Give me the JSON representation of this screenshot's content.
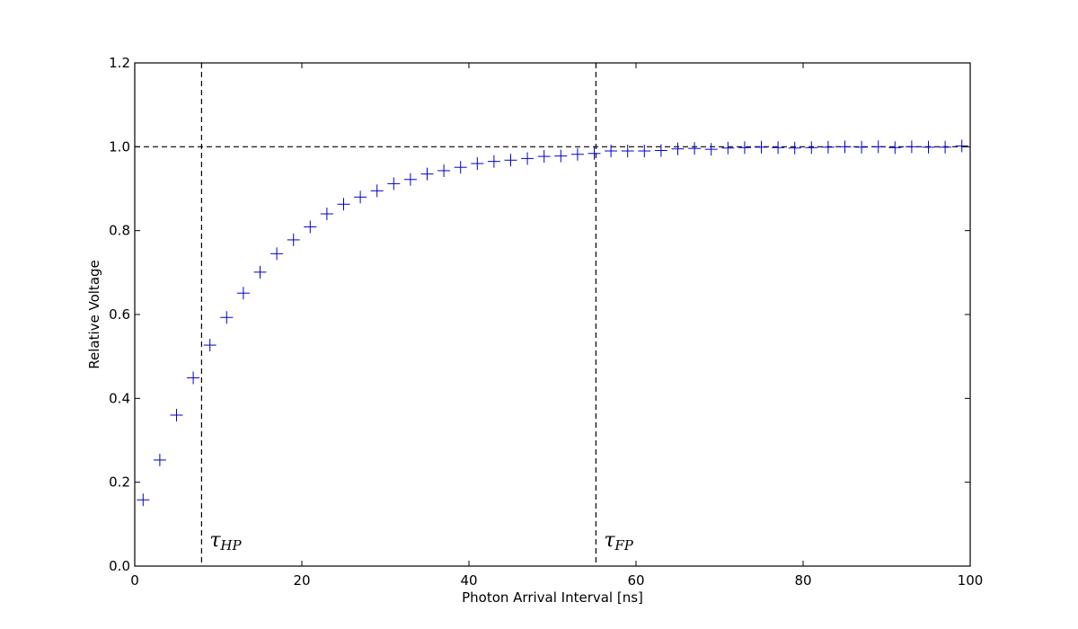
{
  "chart_data": {
    "type": "scatter",
    "title": "",
    "xlabel": "Photon Arrival Interval [ns]",
    "ylabel": "Relative Voltage",
    "xlim": [
      0,
      100
    ],
    "ylim": [
      0.0,
      1.2
    ],
    "xticks": [
      0,
      20,
      40,
      60,
      80,
      100
    ],
    "xtick_labels": [
      "0",
      "20",
      "40",
      "60",
      "80",
      "100"
    ],
    "yticks": [
      0.0,
      0.2,
      0.4,
      0.6,
      0.8,
      1.0,
      1.2
    ],
    "ytick_labels": [
      "0.0",
      "0.2",
      "0.4",
      "0.6",
      "0.8",
      "1.0",
      "1.2"
    ],
    "grid": false,
    "marker": "+",
    "marker_color": "#0000cc",
    "series": [
      {
        "name": "relative voltage",
        "x": [
          1,
          3,
          5,
          7,
          9,
          11,
          13,
          15,
          17,
          19,
          21,
          23,
          25,
          27,
          29,
          31,
          33,
          35,
          37,
          39,
          41,
          43,
          45,
          47,
          49,
          51,
          53,
          55,
          57,
          59,
          61,
          63,
          65,
          67,
          69,
          71,
          73,
          75,
          77,
          79,
          81,
          83,
          85,
          87,
          89,
          91,
          93,
          95,
          97,
          99
        ],
        "y": [
          0.158,
          0.253,
          0.36,
          0.449,
          0.527,
          0.593,
          0.651,
          0.701,
          0.745,
          0.778,
          0.809,
          0.84,
          0.863,
          0.88,
          0.895,
          0.912,
          0.922,
          0.935,
          0.943,
          0.951,
          0.96,
          0.965,
          0.968,
          0.972,
          0.977,
          0.978,
          0.982,
          0.984,
          0.99,
          0.99,
          0.99,
          0.991,
          0.995,
          0.996,
          0.994,
          0.997,
          0.998,
          0.999,
          0.998,
          0.997,
          0.998,
          0.999,
          1.0,
          0.999,
          1.0,
          0.998,
          1.0,
          0.999,
          0.999,
          1.002
        ]
      }
    ],
    "reference_lines": [
      {
        "orientation": "horizontal",
        "y": 1.0,
        "style": "dashed"
      },
      {
        "orientation": "vertical",
        "x": 8.0,
        "style": "dashed",
        "label_main": "τ",
        "label_sub": "HP"
      },
      {
        "orientation": "vertical",
        "x": 55.2,
        "style": "dashed",
        "label_main": "τ",
        "label_sub": "FP"
      }
    ]
  }
}
